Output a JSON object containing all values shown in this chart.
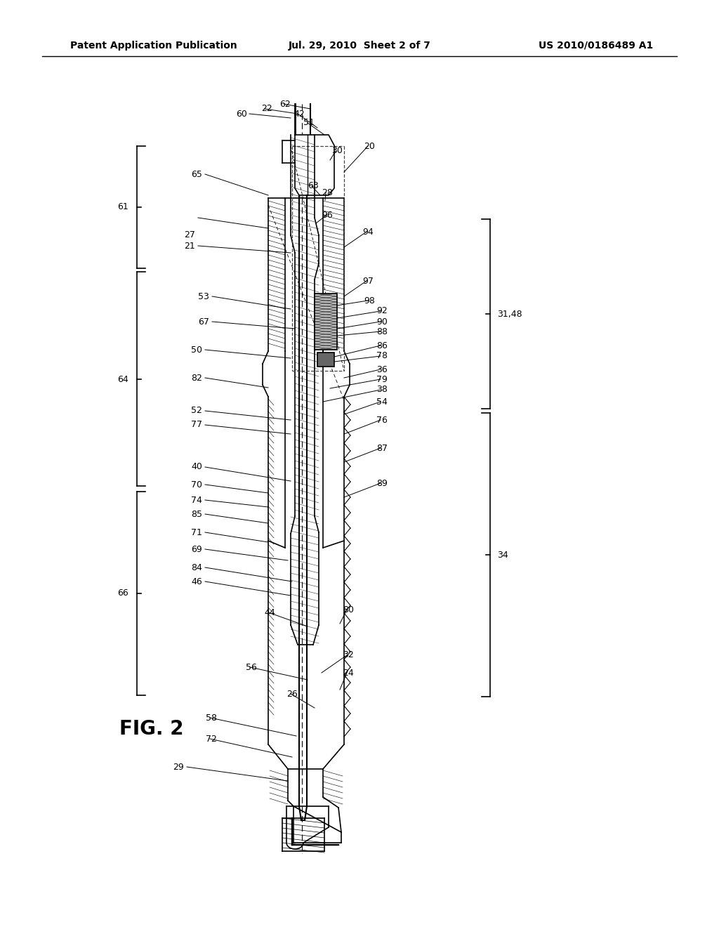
{
  "title_left": "Patent Application Publication",
  "title_center": "Jul. 29, 2010  Sheet 2 of 7",
  "title_right": "US 2010/0186489 A1",
  "fig_label": "FIG. 2",
  "background_color": "#ffffff",
  "line_color": "#000000",
  "fig_width": 10.24,
  "fig_height": 13.2,
  "dpi": 100
}
